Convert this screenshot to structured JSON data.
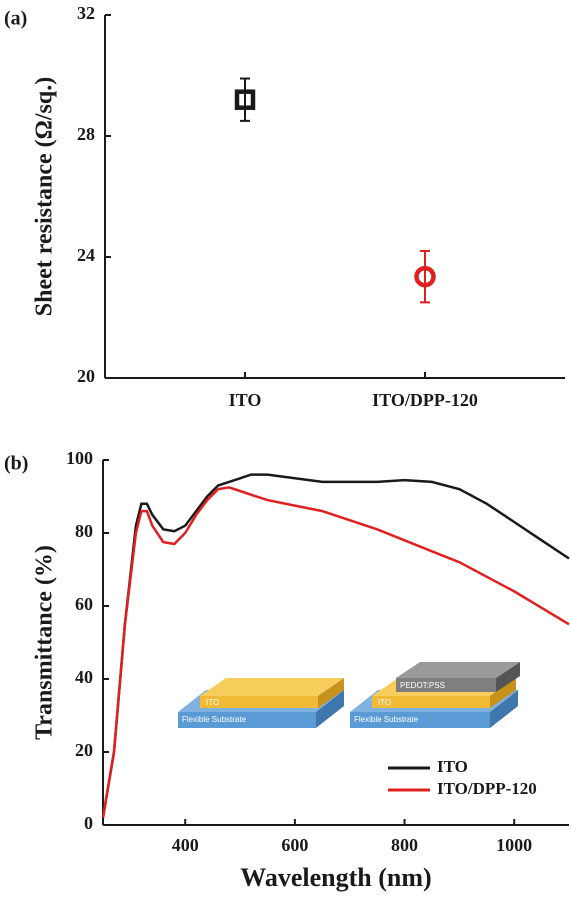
{
  "chart_data": [
    {
      "type": "scatter",
      "panel_label": "(a)",
      "ylabel": "Sheet resistance (Ω/sq.)",
      "categories": [
        "ITO",
        "ITO/DPP-120"
      ],
      "values": [
        29.2,
        23.35
      ],
      "errors": [
        0.7,
        0.85
      ],
      "colors": [
        "#1a1a1a",
        "#e02020"
      ],
      "markers": [
        "square",
        "circle"
      ],
      "ylim": [
        20,
        32
      ],
      "yticks": [
        20,
        24,
        28,
        32
      ]
    },
    {
      "type": "line",
      "panel_label": "(b)",
      "xlabel": "Wavelength (nm)",
      "ylabel": "Transmittance (%)",
      "x": [
        250,
        270,
        290,
        310,
        320,
        330,
        340,
        360,
        380,
        400,
        420,
        440,
        460,
        480,
        500,
        520,
        550,
        600,
        650,
        700,
        750,
        800,
        850,
        900,
        950,
        1000,
        1050,
        1100
      ],
      "series": [
        {
          "name": "ITO",
          "color": "#1a1a1a",
          "values": [
            2,
            20,
            55,
            82,
            88,
            88,
            85,
            81,
            80.5,
            82,
            86,
            90,
            93,
            94,
            95,
            96,
            96,
            95,
            94,
            94,
            94,
            94.5,
            94,
            92,
            88,
            83,
            78,
            73
          ]
        },
        {
          "name": "ITO/DPP-120",
          "color": "#e02020",
          "values": [
            2,
            20,
            55,
            80,
            86,
            86,
            82,
            77.5,
            77,
            80,
            85,
            89,
            92,
            92.5,
            91.5,
            90.5,
            89,
            87.5,
            86,
            83.5,
            81,
            78,
            75,
            72,
            68,
            64,
            59.5,
            55
          ]
        }
      ],
      "xlim": [
        250,
        1100
      ],
      "xticks": [
        400,
        600,
        800,
        1000
      ],
      "ylim": [
        0,
        100
      ],
      "yticks": [
        0,
        20,
        40,
        60,
        80,
        100
      ],
      "legend": "lower right",
      "annotations": [
        "ITO",
        "Flexible Substrate",
        "PEDOT:PSS",
        "ITO",
        "Flexible Substrate"
      ]
    }
  ]
}
